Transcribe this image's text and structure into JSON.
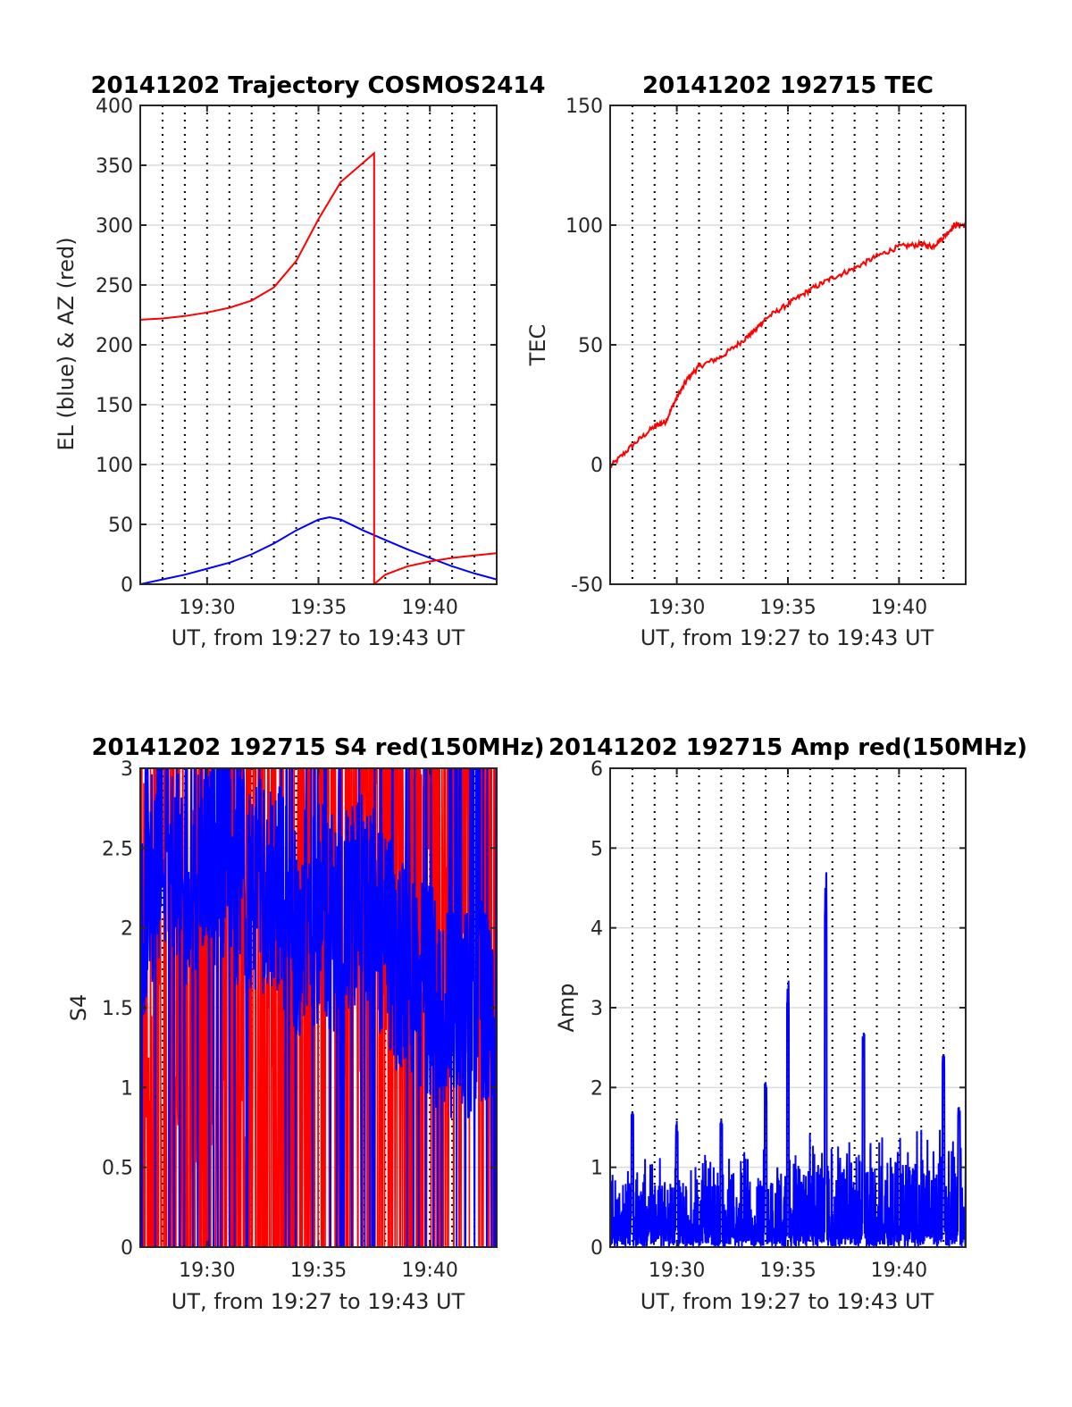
{
  "figure": {
    "xlabel": "UT, from 19:27 to 19:43 UT",
    "x_ticks": [
      "19:30",
      "19:35",
      "19:40"
    ],
    "colors": {
      "red": "#ff0000",
      "blue": "#0000ff",
      "grid": "#dcdcdc",
      "axis": "#262626"
    }
  },
  "chart_data": [
    {
      "type": "line",
      "title": "20141202 Trajectory COSMOS2414",
      "xlabel": "UT, from 19:27 to 19:43 UT",
      "ylabel": "EL (blue) & AZ (red)",
      "x_range": [
        "19:27",
        "19:43"
      ],
      "x_ticks": [
        "19:30",
        "19:35",
        "19:40"
      ],
      "ylim": [
        0,
        400
      ],
      "y_ticks": [
        "0",
        "50",
        "100",
        "150",
        "200",
        "250",
        "300",
        "350",
        "400"
      ],
      "grid": "dotted vertical every minute, horizontal at y ticks",
      "series": [
        {
          "color": "#0000ff",
          "points": [
            [
              "19:27",
              0
            ],
            [
              "19:28",
              4
            ],
            [
              "19:29",
              8
            ],
            [
              "19:30",
              13
            ],
            [
              "19:31",
              18
            ],
            [
              "19:32",
              25
            ],
            [
              "19:33",
              34
            ],
            [
              "19:34",
              45
            ],
            [
              "19:35",
              54
            ],
            [
              "19:35.5",
              56
            ],
            [
              "19:36",
              54
            ],
            [
              "19:37",
              45
            ],
            [
              "19:38",
              37
            ],
            [
              "19:39",
              29
            ],
            [
              "19:40",
              22
            ],
            [
              "19:41",
              15
            ],
            [
              "19:42",
              9
            ],
            [
              "19:43",
              4
            ]
          ]
        },
        {
          "color": "#ff0000",
          "points": [
            [
              "19:27",
              221
            ],
            [
              "19:28",
              222
            ],
            [
              "19:29",
              224
            ],
            [
              "19:30",
              227
            ],
            [
              "19:31",
              231
            ],
            [
              "19:32",
              237
            ],
            [
              "19:33",
              248
            ],
            [
              "19:34",
              270
            ],
            [
              "19:35",
              305
            ],
            [
              "19:36",
              336
            ],
            [
              "19:37",
              352
            ],
            [
              "19:37.5",
              360
            ],
            [
              "19:37.5",
              0
            ],
            [
              "19:38",
              8
            ],
            [
              "19:39",
              15
            ],
            [
              "19:40",
              19
            ],
            [
              "19:41",
              22
            ],
            [
              "19:42",
              24
            ],
            [
              "19:43",
              26
            ]
          ]
        }
      ]
    },
    {
      "type": "line",
      "title": "20141202 192715 TEC",
      "xlabel": "UT, from 19:27 to 19:43 UT",
      "ylabel": "TEC",
      "x_range": [
        "19:27",
        "19:43"
      ],
      "x_ticks": [
        "19:30",
        "19:35",
        "19:40"
      ],
      "ylim": [
        -50,
        150
      ],
      "y_ticks": [
        "-50",
        "0",
        "50",
        "100",
        "150"
      ],
      "grid": "dotted vertical every minute, horizontal at y ticks",
      "series": [
        {
          "color": "#ff0000",
          "points": [
            [
              "19:27",
              -1
            ],
            [
              "19:28",
              8
            ],
            [
              "19:29",
              16
            ],
            [
              "19:29.5",
              18
            ],
            [
              "19:30",
              28
            ],
            [
              "19:30.5",
              36
            ],
            [
              "19:31",
              41
            ],
            [
              "19:32",
              45
            ],
            [
              "19:33",
              52
            ],
            [
              "19:33.5",
              56
            ],
            [
              "19:34",
              61
            ],
            [
              "19:35",
              67
            ],
            [
              "19:36",
              73
            ],
            [
              "19:37",
              78
            ],
            [
              "19:38",
              82
            ],
            [
              "19:39",
              87
            ],
            [
              "19:40",
              91
            ],
            [
              "19:41",
              92
            ],
            [
              "19:41.5",
              91
            ],
            [
              "19:42",
              95
            ],
            [
              "19:42.5",
              100
            ],
            [
              "19:43",
              100
            ]
          ]
        }
      ]
    },
    {
      "type": "line",
      "title": "20141202 192715 S4 red(150MHz)",
      "xlabel": "UT, from 19:27 to 19:43 UT",
      "ylabel": "S4",
      "x_range": [
        "19:27",
        "19:43"
      ],
      "x_ticks": [
        "19:30",
        "19:35",
        "19:40"
      ],
      "ylim": [
        0,
        3
      ],
      "y_ticks": [
        "0",
        "0.5",
        "1",
        "1.5",
        "2",
        "2.5",
        "3"
      ],
      "grid": "dotted vertical every minute, horizontal at y ticks",
      "series": [
        {
          "color": "#ff0000",
          "description_level_envelope": [
            [
              "19:27",
              3
            ],
            [
              "19:43",
              3
            ]
          ],
          "points": [
            [
              "19:27",
              0
            ],
            [
              "19:28",
              3
            ],
            [
              "19:29",
              0
            ],
            [
              "19:30",
              3
            ],
            [
              "19:31",
              0.8
            ],
            [
              "19:32",
              3
            ],
            [
              "19:33",
              0
            ],
            [
              "19:34",
              3
            ],
            [
              "19:35",
              1.3
            ],
            [
              "19:36",
              3
            ],
            [
              "19:37",
              0
            ],
            [
              "19:38",
              3
            ],
            [
              "19:39",
              0
            ],
            [
              "19:40",
              3
            ],
            [
              "19:41",
              0
            ],
            [
              "19:42",
              3
            ],
            [
              "19:43",
              3
            ]
          ]
        },
        {
          "color": "#0000ff",
          "points": [
            [
              "19:27",
              2.0
            ],
            [
              "19:28",
              2.6
            ],
            [
              "19:29",
              2.3
            ],
            [
              "19:30",
              2.5
            ],
            [
              "19:31",
              2.4
            ],
            [
              "19:32",
              2.2
            ],
            [
              "19:33",
              2.3
            ],
            [
              "19:34",
              2.0
            ],
            [
              "19:35",
              2.1
            ],
            [
              "19:36",
              2.0
            ],
            [
              "19:37",
              2.2
            ],
            [
              "19:38",
              1.9
            ],
            [
              "19:39",
              1.7
            ],
            [
              "19:40",
              1.6
            ],
            [
              "19:41",
              1.5
            ],
            [
              "19:42",
              1.5
            ],
            [
              "19:43",
              1.4
            ]
          ]
        }
      ]
    },
    {
      "type": "line",
      "title": "20141202 192715 Amp red(150MHz)",
      "xlabel": "UT, from 19:27 to 19:43 UT",
      "ylabel": "Amp",
      "x_range": [
        "19:27",
        "19:43"
      ],
      "x_ticks": [
        "19:30",
        "19:35",
        "19:40"
      ],
      "ylim": [
        0,
        6
      ],
      "y_ticks": [
        "0",
        "1",
        "2",
        "3",
        "4",
        "5",
        "6"
      ],
      "grid": "dotted vertical every minute, horizontal at y ticks",
      "series": [
        {
          "color": "#0000ff",
          "baseline_envelope": [
            [
              "19:27",
              1.0
            ],
            [
              "19:30",
              1.1
            ],
            [
              "19:33",
              1.2
            ],
            [
              "19:36",
              1.3
            ],
            [
              "19:39",
              1.4
            ],
            [
              "19:43",
              1.5
            ]
          ],
          "peaks": [
            [
              "19:28",
              1.7
            ],
            [
              "19:30",
              1.6
            ],
            [
              "19:32",
              1.6
            ],
            [
              "19:34",
              2.1
            ],
            [
              "19:35",
              3.35
            ],
            [
              "19:36.7",
              4.7
            ],
            [
              "19:38.4",
              2.8
            ],
            [
              "19:42",
              2.55
            ],
            [
              "19:42.7",
              1.8
            ]
          ]
        }
      ]
    }
  ]
}
